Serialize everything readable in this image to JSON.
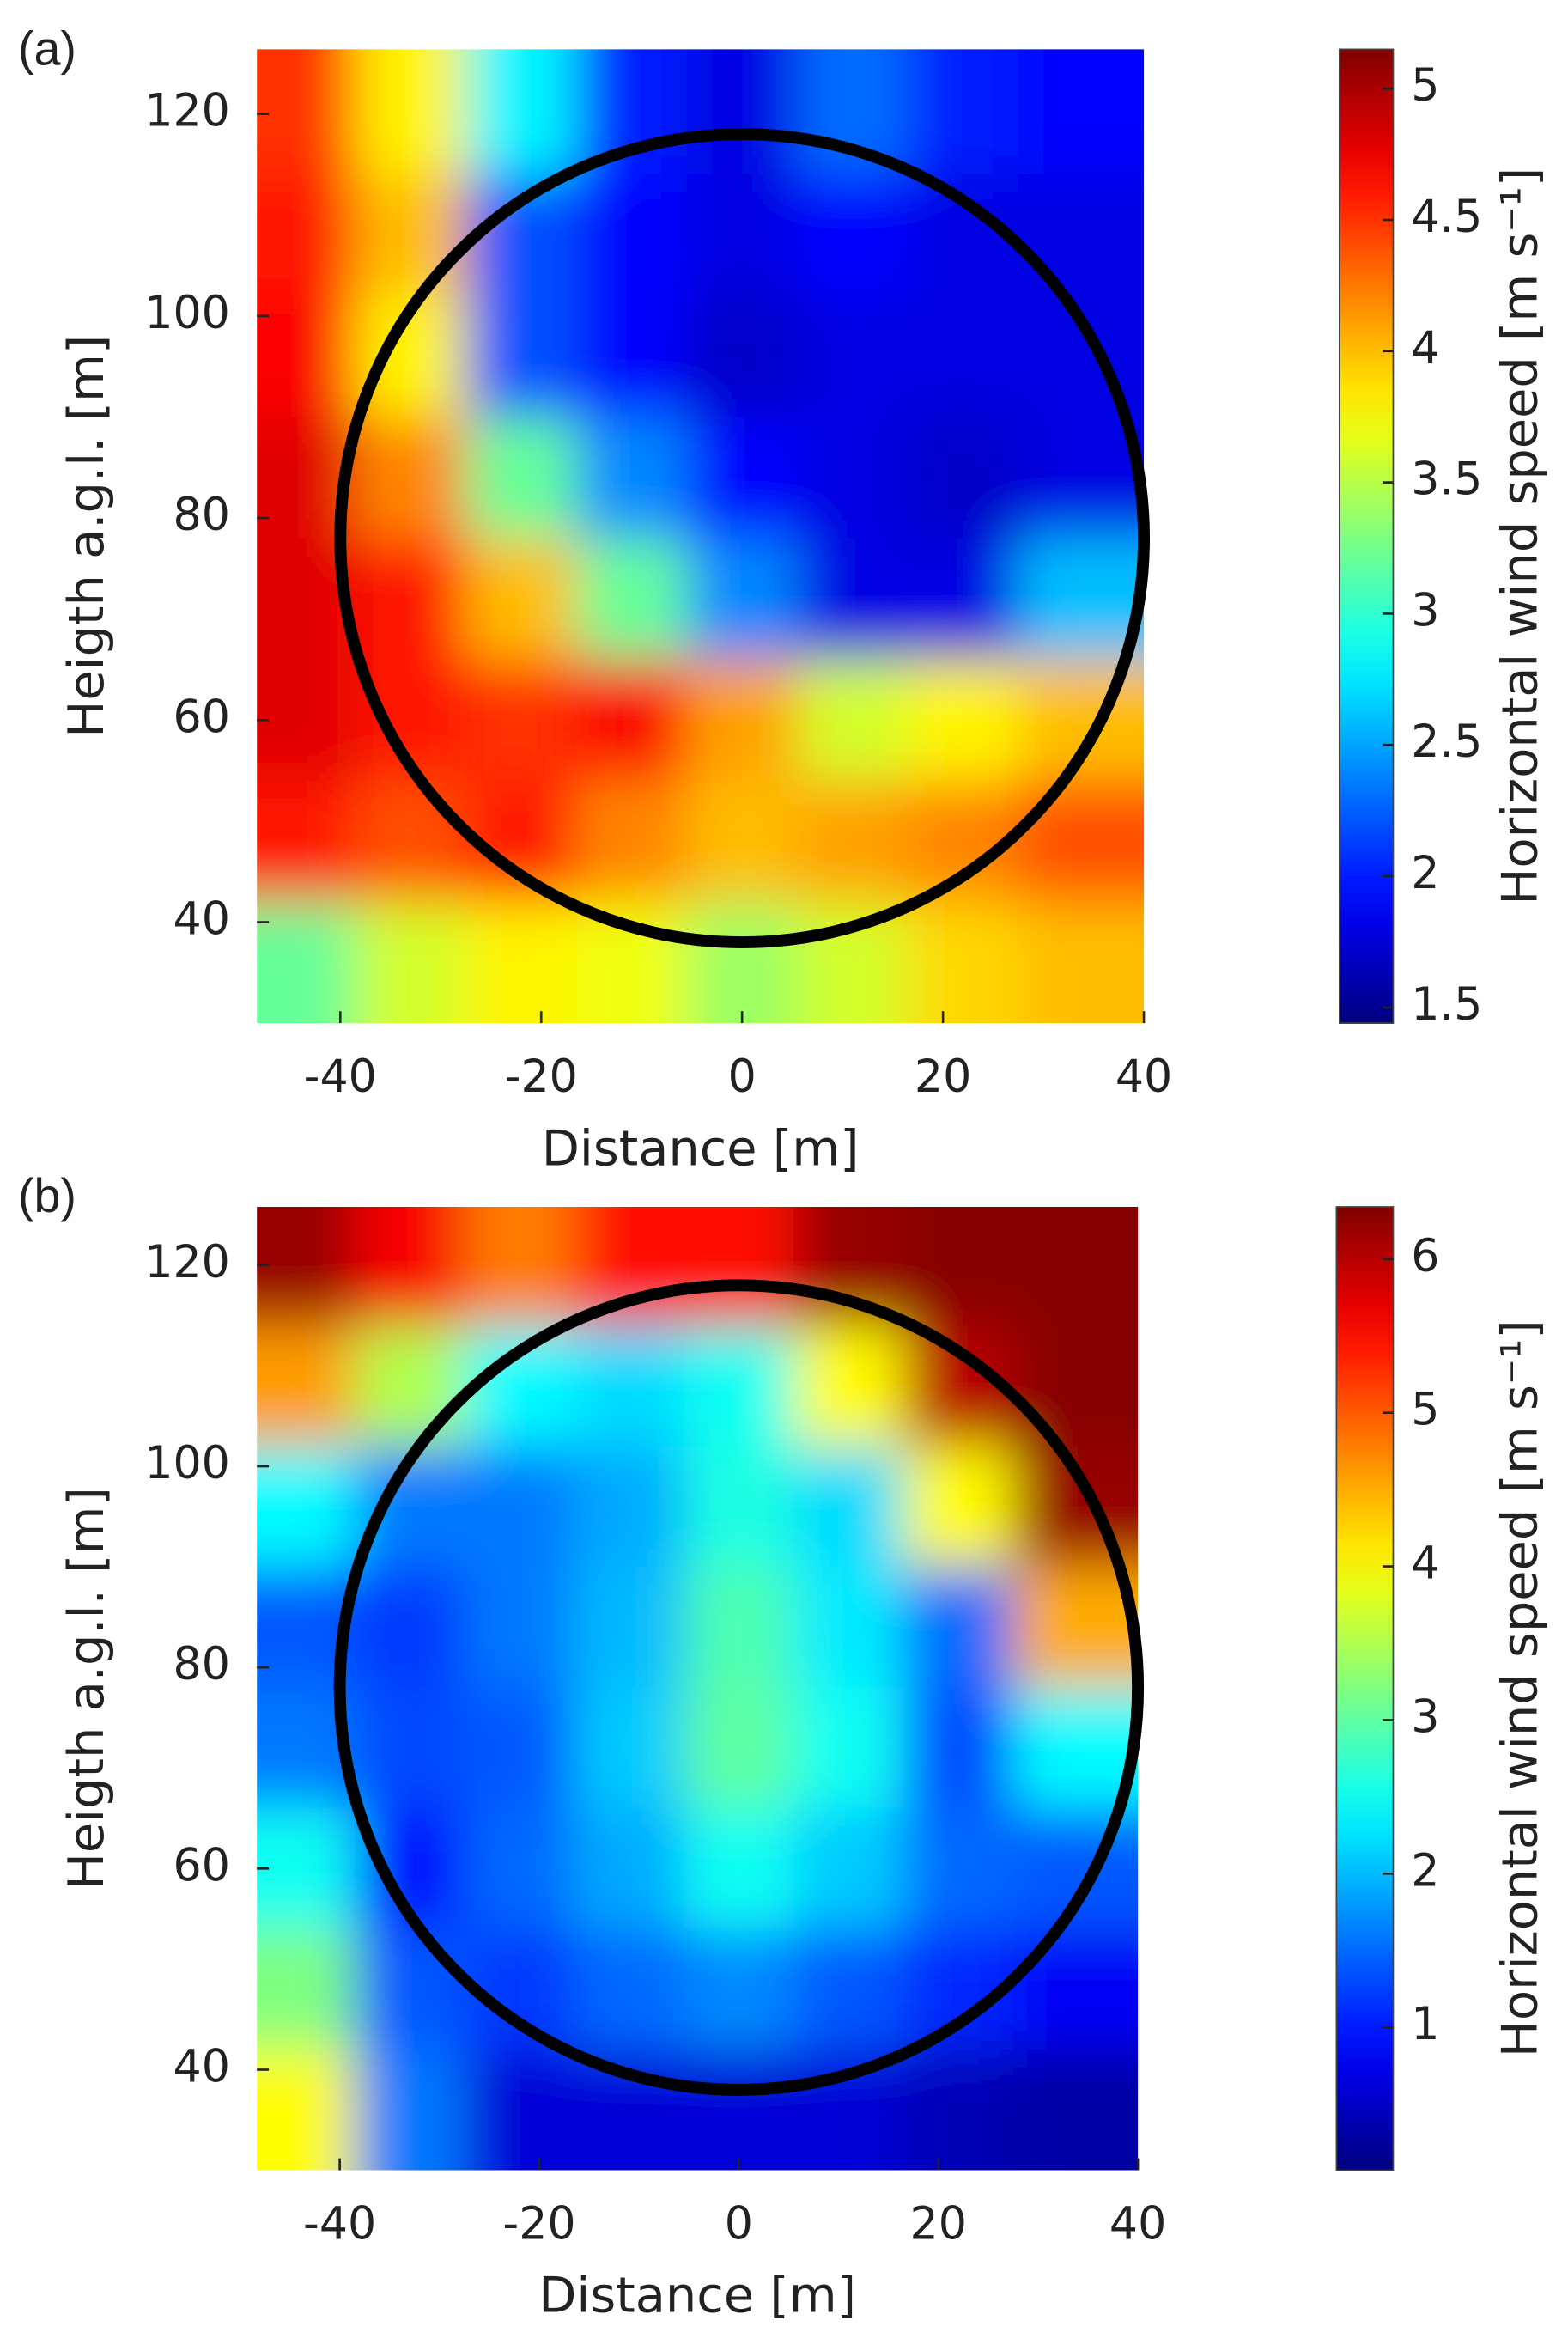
{
  "chart_data": [
    {
      "type": "heatmap",
      "panel_label": "(a)",
      "xlabel": "Distance [m]",
      "ylabel": "Heigth a.g.l. [m]",
      "colorbar_label": "Horizontal wind speed [m s⁻¹]",
      "colormap": "jet",
      "xlim": [
        -48.3,
        40
      ],
      "ylim": [
        30,
        126.4
      ],
      "xticks": [
        -40,
        -20,
        0,
        20,
        40
      ],
      "yticks": [
        40,
        60,
        80,
        100,
        120
      ],
      "clim": [
        1.44,
        5.15
      ],
      "cticks": [
        1.5,
        2,
        2.5,
        3,
        3.5,
        4,
        4.5,
        5
      ],
      "x": [
        -44,
        -33,
        -22,
        -11,
        0,
        11,
        22,
        33
      ],
      "y": [
        120,
        108,
        96,
        84,
        72,
        60,
        48,
        36
      ],
      "values": [
        [
          4.5,
          3.8,
          2.8,
          2.0,
          1.8,
          2.3,
          2.0,
          1.9
        ],
        [
          4.6,
          4.0,
          2.2,
          1.9,
          1.8,
          1.9,
          1.8,
          1.8
        ],
        [
          4.7,
          3.8,
          2.2,
          1.9,
          1.7,
          1.8,
          1.8,
          1.8
        ],
        [
          4.8,
          4.2,
          3.2,
          2.4,
          1.9,
          1.8,
          1.7,
          1.8
        ],
        [
          4.8,
          4.6,
          4.0,
          3.2,
          2.4,
          1.8,
          1.8,
          2.6
        ],
        [
          4.8,
          4.6,
          4.5,
          4.7,
          4.1,
          3.6,
          3.8,
          4.0
        ],
        [
          4.6,
          4.4,
          4.6,
          4.2,
          4.0,
          4.1,
          4.2,
          4.4
        ],
        [
          3.2,
          3.6,
          3.8,
          3.7,
          3.4,
          3.6,
          3.9,
          4.0
        ]
      ],
      "circle": {
        "center": [
          0,
          78
        ],
        "radius": 40,
        "color": "#000000"
      }
    },
    {
      "type": "heatmap",
      "panel_label": "(b)",
      "xlabel": "Distance [m]",
      "ylabel": "Heigth a.g.l. [m]",
      "colorbar_label": "Horizontal wind speed [m s⁻¹]",
      "colormap": "jet",
      "xlim": [
        -48.3,
        40
      ],
      "ylim": [
        30,
        125.8
      ],
      "xticks": [
        -40,
        -20,
        0,
        20,
        40
      ],
      "yticks": [
        40,
        60,
        80,
        100,
        120
      ],
      "clim": [
        0.07,
        6.34
      ],
      "cticks": [
        1,
        2,
        3,
        4,
        5,
        6
      ],
      "x": [
        -44,
        -33,
        -22,
        -11,
        0,
        11,
        22,
        33
      ],
      "y": [
        120,
        108,
        96,
        84,
        72,
        60,
        48,
        36
      ],
      "values": [
        [
          6.2,
          5.6,
          4.8,
          5.5,
          5.5,
          6.2,
          6.3,
          6.3
        ],
        [
          4.6,
          3.5,
          2.4,
          2.2,
          2.5,
          4.0,
          6.0,
          6.3
        ],
        [
          2.4,
          1.6,
          1.6,
          1.9,
          2.6,
          2.2,
          4.0,
          6.2
        ],
        [
          1.4,
          1.2,
          1.6,
          2.0,
          2.9,
          2.3,
          1.5,
          4.5
        ],
        [
          1.6,
          1.3,
          1.4,
          2.1,
          3.0,
          2.5,
          1.3,
          2.4
        ],
        [
          2.5,
          0.9,
          1.5,
          1.9,
          2.5,
          2.1,
          1.5,
          1.4
        ],
        [
          3.2,
          1.4,
          1.2,
          1.5,
          1.7,
          1.4,
          1.1,
          0.8
        ],
        [
          4.0,
          1.6,
          0.6,
          0.6,
          0.6,
          0.6,
          0.4,
          0.3
        ]
      ],
      "circle": {
        "center": [
          0,
          78
        ],
        "radius": 40,
        "color": "#000000"
      }
    }
  ]
}
